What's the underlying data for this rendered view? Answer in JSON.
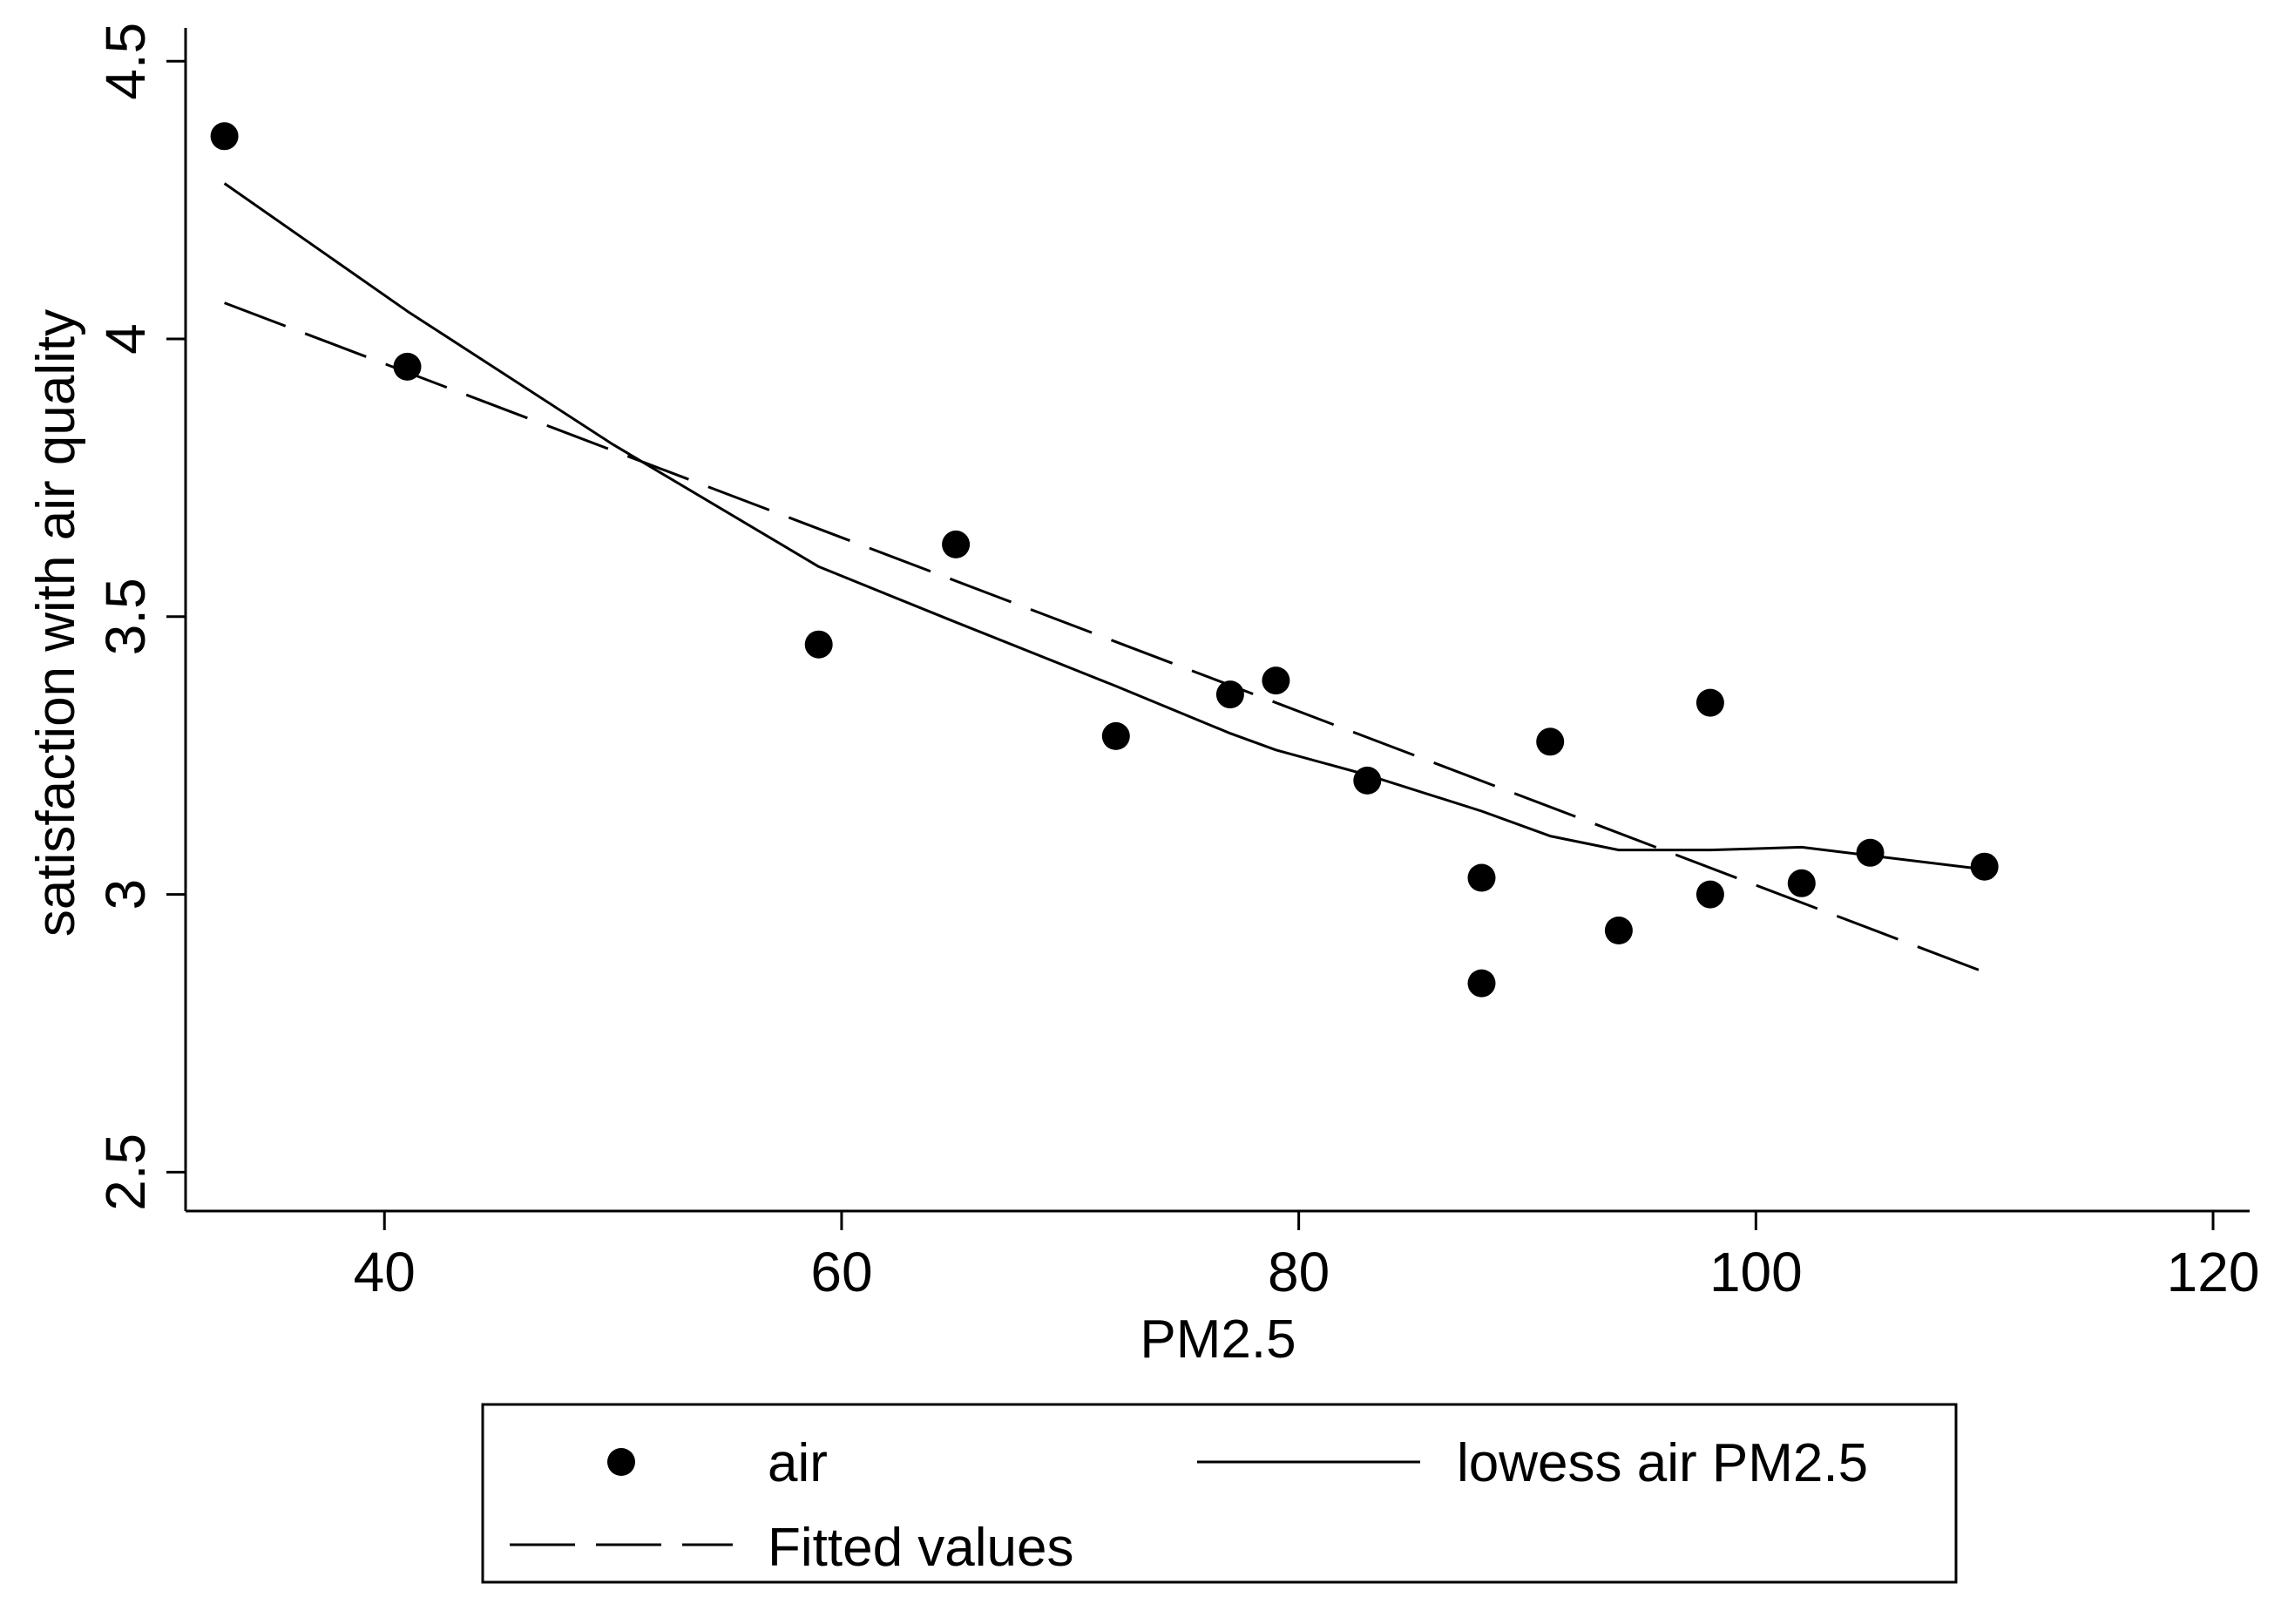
{
  "chart_data": {
    "type": "scatter",
    "title": "",
    "xlabel": "PM2.5",
    "ylabel": "satisfaction with air quality",
    "xlim": [
      31.3,
      121.6
    ],
    "ylim": [
      2.43,
      4.56
    ],
    "xticks": [
      40,
      60,
      80,
      100,
      120
    ],
    "yticks": [
      2.5,
      3,
      3.5,
      4,
      4.5
    ],
    "xtick_labels": [
      "40",
      "60",
      "80",
      "100",
      "120"
    ],
    "ytick_labels": [
      "2.5",
      "3",
      "3.5",
      "4",
      "4.5"
    ],
    "grid": false,
    "legend_position": "bottom",
    "series": [
      {
        "name": "air",
        "kind": "points",
        "x": [
          33,
          41,
          59,
          65,
          72,
          77,
          79,
          83,
          88,
          88,
          91,
          94,
          98,
          98,
          102,
          105,
          110
        ],
        "y": [
          4.365,
          3.95,
          3.45,
          3.63,
          3.285,
          3.36,
          3.385,
          3.205,
          3.03,
          2.84,
          3.275,
          2.935,
          3.345,
          3.0,
          3.02,
          3.075,
          3.05
        ]
      },
      {
        "name": "lowess air PM2.5",
        "kind": "solid-line",
        "x": [
          33,
          41,
          50,
          59,
          65,
          72,
          77,
          79,
          83,
          88,
          91,
          94,
          98,
          102,
          105,
          110
        ],
        "y": [
          4.28,
          4.05,
          3.81,
          3.59,
          3.49,
          3.375,
          3.29,
          3.26,
          3.215,
          3.15,
          3.105,
          3.08,
          3.08,
          3.085,
          3.07,
          3.045
        ]
      },
      {
        "name": "Fitted values",
        "kind": "dashed-line",
        "x": [
          33,
          110
        ],
        "y": [
          4.065,
          2.86
        ]
      }
    ]
  }
}
